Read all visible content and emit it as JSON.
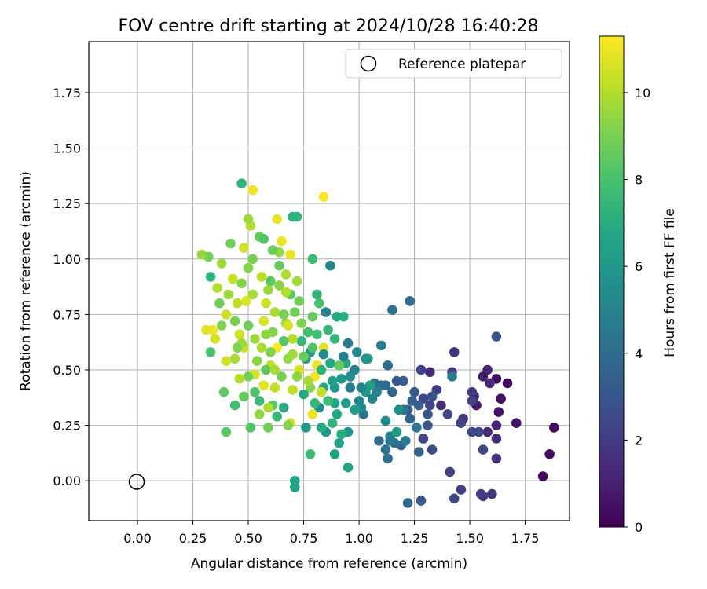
{
  "chart_data": {
    "type": "scatter",
    "title": "FOV centre drift starting at 2024/10/28 16:40:28",
    "xlabel": "Angular distance from reference (arcmin)",
    "ylabel": "Rotation from reference (arcmin)",
    "xlim": [
      -0.22,
      1.95
    ],
    "ylim": [
      -0.18,
      1.98
    ],
    "xticks": [
      "0.00",
      "0.25",
      "0.50",
      "0.75",
      "1.00",
      "1.25",
      "1.50",
      "1.75"
    ],
    "xtick_values": [
      0,
      0.25,
      0.5,
      0.75,
      1.0,
      1.25,
      1.5,
      1.75
    ],
    "yticks": [
      "0.00",
      "0.25",
      "0.50",
      "0.75",
      "1.00",
      "1.25",
      "1.50",
      "1.75"
    ],
    "ytick_values": [
      0,
      0.25,
      0.5,
      0.75,
      1.0,
      1.25,
      1.5,
      1.75
    ],
    "grid": true,
    "legend": {
      "placement": "top-right",
      "entries": [
        "Reference platepar"
      ]
    },
    "reference_point": {
      "x": 0.0,
      "y": 0.0,
      "label": "Reference platepar"
    },
    "colorbar": {
      "label": "Hours from first FF file",
      "colormap": "viridis",
      "range": [
        0,
        11.3
      ],
      "ticks": [
        "0",
        "2",
        "4",
        "6",
        "8",
        "10"
      ],
      "tick_values": [
        0,
        2,
        4,
        6,
        8,
        10
      ]
    },
    "points": [
      [
        1.88,
        0.24,
        0.2
      ],
      [
        1.86,
        0.12,
        0.3
      ],
      [
        1.83,
        0.02,
        0.2
      ],
      [
        1.71,
        0.26,
        0.6
      ],
      [
        1.67,
        0.44,
        0.3
      ],
      [
        1.64,
        0.37,
        0.5
      ],
      [
        1.62,
        0.46,
        0.4
      ],
      [
        1.63,
        0.31,
        0.6
      ],
      [
        1.62,
        0.25,
        1.2
      ],
      [
        1.62,
        0.19,
        1.4
      ],
      [
        1.62,
        0.1,
        1.5
      ],
      [
        1.62,
        0.65,
        2.8
      ],
      [
        1.58,
        0.5,
        1.1
      ],
      [
        1.56,
        0.47,
        0.9
      ],
      [
        1.59,
        0.44,
        1.3
      ],
      [
        1.58,
        0.22,
        1.4
      ],
      [
        1.6,
        -0.06,
        1.8
      ],
      [
        1.55,
        -0.06,
        2.0
      ],
      [
        1.56,
        -0.07,
        2.1
      ],
      [
        1.56,
        0.14,
        2.5
      ],
      [
        1.54,
        0.22,
        2.6
      ],
      [
        1.53,
        0.34,
        0.8
      ],
      [
        1.52,
        0.38,
        1.0
      ],
      [
        1.51,
        0.4,
        1.9
      ],
      [
        1.51,
        0.22,
        2.4
      ],
      [
        1.51,
        0.36,
        2.2
      ],
      [
        1.47,
        0.28,
        1.7
      ],
      [
        1.46,
        0.26,
        2.2
      ],
      [
        1.43,
        0.58,
        1.6
      ],
      [
        1.42,
        0.49,
        2.0
      ],
      [
        1.42,
        0.47,
        4.6
      ],
      [
        1.41,
        0.04,
        2.2
      ],
      [
        1.46,
        -0.04,
        2.0
      ],
      [
        1.43,
        -0.08,
        2.5
      ],
      [
        1.4,
        0.3,
        2.4
      ],
      [
        1.37,
        0.34,
        1.5
      ],
      [
        1.35,
        0.41,
        2.1
      ],
      [
        1.33,
        0.38,
        2.9
      ],
      [
        1.32,
        0.49,
        1.3
      ],
      [
        1.32,
        0.34,
        2.3
      ],
      [
        1.33,
        0.14,
        2.6
      ],
      [
        1.31,
        0.3,
        2.9
      ],
      [
        1.31,
        0.25,
        3.1
      ],
      [
        1.29,
        0.37,
        2.4
      ],
      [
        1.28,
        0.5,
        2.2
      ],
      [
        1.29,
        0.19,
        2.3
      ],
      [
        1.28,
        -0.09,
        3.0
      ],
      [
        1.27,
        0.34,
        3.4
      ],
      [
        1.27,
        0.13,
        3.6
      ],
      [
        1.25,
        0.4,
        3.2
      ],
      [
        1.24,
        0.36,
        3.5
      ],
      [
        1.23,
        0.28,
        3.5
      ],
      [
        1.26,
        0.24,
        4.4
      ],
      [
        1.23,
        0.81,
        3.9
      ],
      [
        1.22,
        0.32,
        3.3
      ],
      [
        1.22,
        -0.1,
        3.8
      ],
      [
        1.2,
        0.32,
        4.3
      ],
      [
        1.2,
        0.45,
        3.3
      ],
      [
        1.19,
        0.16,
        3.7
      ],
      [
        1.18,
        0.32,
        5.5
      ],
      [
        1.17,
        0.45,
        3.1
      ],
      [
        1.16,
        0.17,
        4.1
      ],
      [
        1.15,
        0.77,
        4.2
      ],
      [
        1.15,
        0.4,
        3.7
      ],
      [
        1.14,
        0.2,
        5.2
      ],
      [
        1.14,
        0.18,
        4.5
      ],
      [
        1.13,
        0.1,
        4.2
      ],
      [
        1.13,
        0.52,
        4.0
      ],
      [
        1.12,
        0.14,
        4.2
      ],
      [
        1.12,
        0.43,
        3.8
      ],
      [
        1.1,
        0.61,
        4.6
      ],
      [
        1.1,
        0.43,
        4.1
      ],
      [
        1.09,
        0.18,
        3.9
      ],
      [
        1.08,
        0.4,
        4.9
      ],
      [
        1.07,
        0.44,
        4.4
      ],
      [
        1.05,
        0.43,
        6.3
      ],
      [
        1.04,
        0.55,
        6.4
      ],
      [
        1.03,
        0.55,
        5.8
      ],
      [
        1.03,
        0.4,
        6.0
      ],
      [
        1.02,
        0.3,
        4.4
      ],
      [
        1.01,
        0.33,
        5.3
      ],
      [
        1.01,
        0.42,
        4.9
      ],
      [
        0.99,
        0.58,
        5.1
      ],
      [
        0.98,
        0.5,
        4.9
      ],
      [
        0.98,
        0.32,
        6.2
      ],
      [
        0.96,
        0.42,
        4.7
      ],
      [
        0.95,
        0.62,
        4.6
      ],
      [
        0.95,
        0.06,
        6.6
      ],
      [
        0.95,
        0.22,
        5.9
      ],
      [
        0.94,
        0.35,
        6.3
      ],
      [
        0.94,
        0.53,
        6.9
      ],
      [
        0.93,
        0.56,
        4.9
      ],
      [
        0.93,
        0.74,
        7.1
      ],
      [
        0.92,
        0.21,
        7.0
      ],
      [
        0.91,
        0.17,
        6.6
      ],
      [
        0.91,
        0.52,
        8.6
      ],
      [
        0.9,
        0.74,
        6.8
      ],
      [
        0.89,
        0.12,
        6.4
      ],
      [
        0.89,
        0.35,
        6.5
      ],
      [
        0.89,
        0.42,
        5.8
      ],
      [
        0.89,
        0.64,
        7.4
      ],
      [
        0.88,
        0.45,
        6.4
      ],
      [
        0.87,
        0.97,
        5.1
      ],
      [
        0.87,
        0.53,
        6.8
      ],
      [
        0.86,
        0.68,
        7.5
      ],
      [
        0.85,
        0.22,
        5.8
      ],
      [
        0.85,
        0.76,
        5.0
      ],
      [
        0.84,
        0.6,
        10.8
      ],
      [
        0.84,
        0.57,
        5.5
      ],
      [
        0.84,
        0.42,
        6.7
      ],
      [
        0.84,
        1.28,
        11.2
      ],
      [
        0.83,
        0.4,
        10.3
      ],
      [
        0.83,
        0.24,
        6.9
      ],
      [
        0.82,
        0.8,
        8.0
      ],
      [
        0.82,
        0.33,
        5.6
      ],
      [
        0.81,
        0.84,
        7.3
      ],
      [
        0.81,
        0.52,
        11.0
      ],
      [
        0.8,
        0.47,
        11.1
      ],
      [
        0.8,
        0.35,
        7.5
      ],
      [
        0.79,
        0.74,
        8.6
      ],
      [
        0.79,
        0.3,
        11.0
      ],
      [
        0.79,
        1.0,
        7.6
      ],
      [
        0.78,
        0.58,
        6.1
      ],
      [
        0.78,
        0.12,
        7.7
      ],
      [
        0.78,
        0.42,
        9.3
      ],
      [
        0.77,
        0.67,
        7.9
      ],
      [
        0.76,
        0.55,
        6.3
      ],
      [
        0.76,
        0.24,
        6.0
      ],
      [
        0.75,
        0.39,
        6.9
      ],
      [
        0.74,
        0.63,
        7.4
      ],
      [
        0.73,
        0.81,
        8.8
      ],
      [
        0.73,
        0.5,
        10.5
      ],
      [
        0.72,
        1.19,
        7.3
      ],
      [
        0.72,
        0.9,
        9.7
      ],
      [
        0.71,
        0.0,
        6.5
      ],
      [
        0.71,
        -0.03,
        6.5
      ],
      [
        0.7,
        0.41,
        10.2
      ],
      [
        0.7,
        0.64,
        10.0
      ],
      [
        0.7,
        1.19,
        7.2
      ],
      [
        0.69,
        1.02,
        10.9
      ],
      [
        0.69,
        0.26,
        10.7
      ],
      [
        0.69,
        0.84,
        8.4
      ],
      [
        0.68,
        0.55,
        9.5
      ],
      [
        0.68,
        0.25,
        9.2
      ],
      [
        0.67,
        0.85,
        10.1
      ],
      [
        0.67,
        0.71,
        9.8
      ],
      [
        0.66,
        0.33,
        7.0
      ],
      [
        0.66,
        0.63,
        8.3
      ],
      [
        0.65,
        0.47,
        9.0
      ],
      [
        0.65,
        1.08,
        10.9
      ],
      [
        0.64,
        1.03,
        9.5
      ],
      [
        0.64,
        0.97,
        8.6
      ],
      [
        0.63,
        0.6,
        11.2
      ],
      [
        0.63,
        0.29,
        7.5
      ],
      [
        0.63,
        1.18,
        10.9
      ],
      [
        0.62,
        0.76,
        9.9
      ],
      [
        0.62,
        0.42,
        10.3
      ],
      [
        0.61,
        0.67,
        9.2
      ],
      [
        0.61,
        0.34,
        8.4
      ],
      [
        0.61,
        1.04,
        8.7
      ],
      [
        0.6,
        0.52,
        10.2
      ],
      [
        0.59,
        0.86,
        9.6
      ],
      [
        0.59,
        0.33,
        10.0
      ],
      [
        0.58,
        0.66,
        9.4
      ],
      [
        0.58,
        0.5,
        8.5
      ],
      [
        0.57,
        0.43,
        10.8
      ],
      [
        0.57,
        0.72,
        10.6
      ],
      [
        0.56,
        0.92,
        10.1
      ],
      [
        0.55,
        1.1,
        8.6
      ],
      [
        0.55,
        0.36,
        7.6
      ],
      [
        0.54,
        0.54,
        9.3
      ],
      [
        0.53,
        0.48,
        10.6
      ],
      [
        0.53,
        0.64,
        9.6
      ],
      [
        0.52,
        0.84,
        9.8
      ],
      [
        0.52,
        1.31,
        11.0
      ],
      [
        0.51,
        0.24,
        8.2
      ],
      [
        0.51,
        1.15,
        10.0
      ],
      [
        0.5,
        0.96,
        9.2
      ],
      [
        0.5,
        0.7,
        8.8
      ],
      [
        0.5,
        0.47,
        8.9
      ],
      [
        0.49,
        0.81,
        10.7
      ],
      [
        0.48,
        0.38,
        8.6
      ],
      [
        0.48,
        0.6,
        10.3
      ],
      [
        0.47,
        1.34,
        7.3
      ],
      [
        0.47,
        0.89,
        9.2
      ],
      [
        0.47,
        0.62,
        9.7
      ],
      [
        0.46,
        0.66,
        10.4
      ],
      [
        0.46,
        0.46,
        10.0
      ],
      [
        0.45,
        0.8,
        10.2
      ],
      [
        0.44,
        0.72,
        9.0
      ],
      [
        0.44,
        0.55,
        9.8
      ],
      [
        0.44,
        0.34,
        7.9
      ],
      [
        0.43,
        0.91,
        10.3
      ],
      [
        0.42,
        1.07,
        8.8
      ],
      [
        0.41,
        0.84,
        9.6
      ],
      [
        0.4,
        0.75,
        10.4
      ],
      [
        0.4,
        0.54,
        10.5
      ],
      [
        0.4,
        0.22,
        8.4
      ],
      [
        0.39,
        0.4,
        8.5
      ],
      [
        0.38,
        0.7,
        9.2
      ],
      [
        0.38,
        0.98,
        9.7
      ],
      [
        0.37,
        0.8,
        8.8
      ],
      [
        0.36,
        0.87,
        10.0
      ],
      [
        0.35,
        0.64,
        10.5
      ],
      [
        0.34,
        0.68,
        11.0
      ],
      [
        0.33,
        0.92,
        7.2
      ],
      [
        0.33,
        0.58,
        8.0
      ],
      [
        0.32,
        1.01,
        8.9
      ],
      [
        0.31,
        0.68,
        10.8
      ],
      [
        0.29,
        1.02,
        9.5
      ],
      [
        0.56,
        0.6,
        9.9
      ],
      [
        0.58,
        0.8,
        10.4
      ],
      [
        0.6,
        0.58,
        9.1
      ],
      [
        0.62,
        0.5,
        9.8
      ],
      [
        0.66,
        0.75,
        9.0
      ],
      [
        0.68,
        0.7,
        10.6
      ],
      [
        0.7,
        0.57,
        9.7
      ],
      [
        0.72,
        0.47,
        9.4
      ],
      [
        0.74,
        0.71,
        9.1
      ],
      [
        0.75,
        0.56,
        8.7
      ],
      [
        0.77,
        0.45,
        9.8
      ],
      [
        0.79,
        0.6,
        8.1
      ],
      [
        0.81,
        0.66,
        7.8
      ],
      [
        0.83,
        0.5,
        7.2
      ],
      [
        0.86,
        0.36,
        7.7
      ],
      [
        0.88,
        0.26,
        7.3
      ],
      [
        0.9,
        0.3,
        6.8
      ],
      [
        0.92,
        0.46,
        5.9
      ],
      [
        0.96,
        0.47,
        5.4
      ],
      [
        1.0,
        0.36,
        5.2
      ],
      [
        1.06,
        0.37,
        5.0
      ],
      [
        1.12,
        0.27,
        5.4
      ],
      [
        1.17,
        0.22,
        6.1
      ],
      [
        1.21,
        0.18,
        4.8
      ],
      [
        0.52,
        1.0,
        9.0
      ],
      [
        0.57,
        1.09,
        8.2
      ],
      [
        0.6,
        0.9,
        8.5
      ],
      [
        0.64,
        0.88,
        9.3
      ],
      [
        0.67,
        0.93,
        9.9
      ],
      [
        0.71,
        0.76,
        8.9
      ],
      [
        0.48,
        1.05,
        10.5
      ],
      [
        0.5,
        1.18,
        9.6
      ],
      [
        0.45,
        0.6,
        9.1
      ],
      [
        0.53,
        0.4,
        8.1
      ],
      [
        0.55,
        0.3,
        9.4
      ],
      [
        0.59,
        0.24,
        8.8
      ]
    ]
  }
}
